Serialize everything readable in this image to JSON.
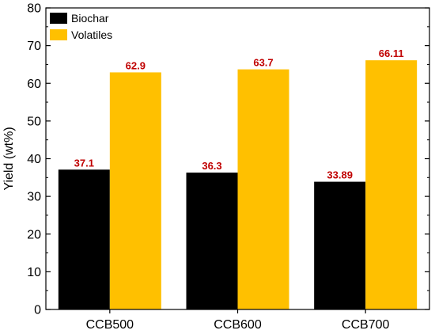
{
  "chart_data": {
    "type": "bar",
    "title": "",
    "xlabel": "",
    "ylabel": "Yield (wt%)",
    "categories": [
      "CCB500",
      "CCB600",
      "CCB700"
    ],
    "series": [
      {
        "name": "Biochar",
        "values": [
          37.1,
          36.3,
          33.89
        ],
        "labels": [
          "37.1",
          "36.3",
          "33.89"
        ],
        "color": "#000000"
      },
      {
        "name": "Volatiles",
        "values": [
          62.9,
          63.7,
          66.11
        ],
        "labels": [
          "62.9",
          "63.7",
          "66.11"
        ],
        "color": "#FFC000"
      }
    ],
    "ylim": [
      0,
      80
    ],
    "yticks": [
      0,
      10,
      20,
      30,
      40,
      50,
      60,
      70,
      80
    ],
    "yticklabels": [
      "0",
      "10",
      "20",
      "30",
      "40",
      "50",
      "60",
      "70",
      "80"
    ],
    "grid": false,
    "legend_position": "top-left",
    "data_label_color": "#C00000"
  }
}
